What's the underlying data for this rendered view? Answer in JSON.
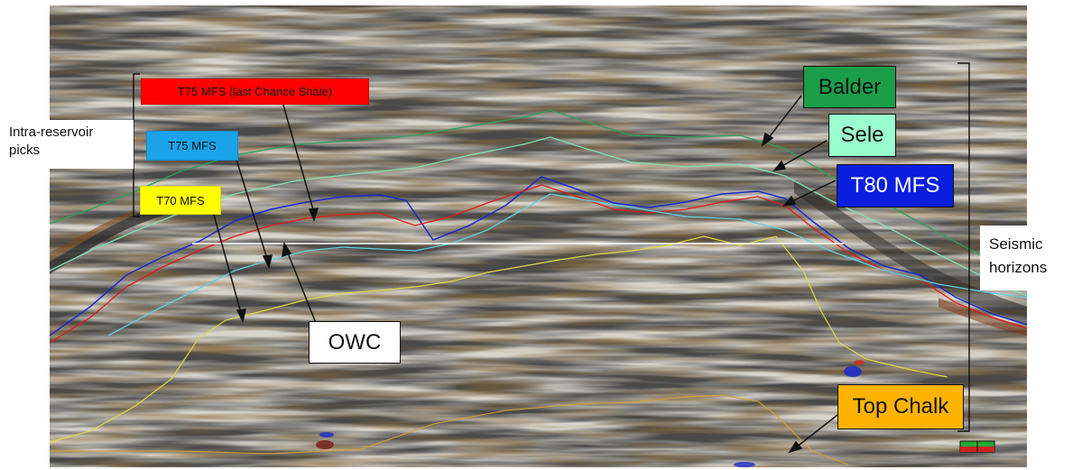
{
  "labels": {
    "t75_mfs_last_chance_shale": "T75 MFS (last Chance Shale)",
    "t75_mfs": "T75 MFS",
    "t70_mfs": "T70 MFS",
    "owc": "OWC",
    "balder": "Balder",
    "sele": "Sele",
    "t80_mfs": "T80 MFS",
    "top_chalk": "Top Chalk"
  },
  "brackets": {
    "intra_reservoir_line1": "Intra-reservoir",
    "intra_reservoir_line2": "picks",
    "seismic_line1": "Seismic",
    "seismic_line2": "horizons"
  },
  "colors": {
    "t75_last_chance": "#ff0000",
    "t75_mfs": "#1aa3e8",
    "t70_mfs": "#ffff00",
    "balder": "#1a9e4a",
    "sele": "#99ffcc",
    "t80_mfs": "#0a1ee0",
    "top_chalk": "#ffb300",
    "owc_box": "#ffffff",
    "owc_line": "#ffffff",
    "seismic_dark": "#3a3a3a",
    "seismic_brown": "#7a5a2a"
  }
}
